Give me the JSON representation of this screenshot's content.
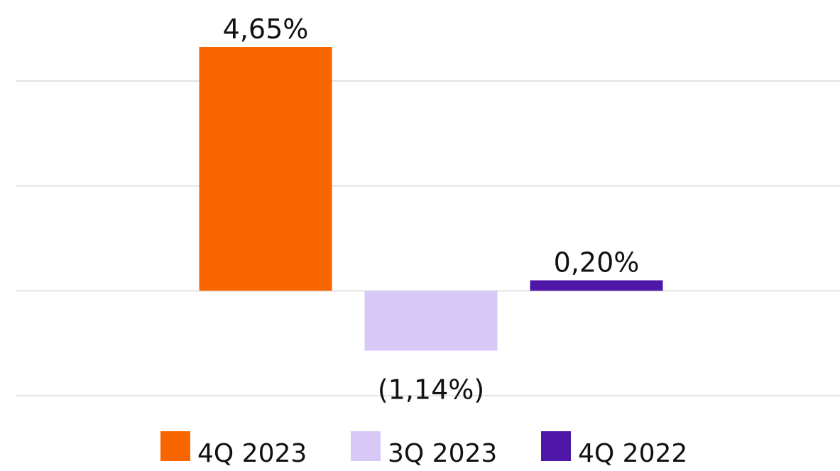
{
  "chart_data": {
    "type": "bar",
    "categories": [
      null
    ],
    "series": [
      {
        "name": "4Q 2023",
        "color": "#f96600",
        "values": [
          4.65
        ],
        "value_labels": [
          "4,65%"
        ]
      },
      {
        "name": "3Q 2023",
        "color": "#d8c8f8",
        "values": [
          -1.14
        ],
        "value_labels": [
          "(1,14%)"
        ]
      },
      {
        "name": "4Q 2022",
        "color": "#4f17a8",
        "values": [
          0.2
        ],
        "value_labels": [
          "0,20%"
        ]
      }
    ],
    "ylim": [
      -2,
      4
    ],
    "yticks": [
      -2,
      0,
      2,
      4
    ],
    "grid": true,
    "legend": "bottom"
  }
}
